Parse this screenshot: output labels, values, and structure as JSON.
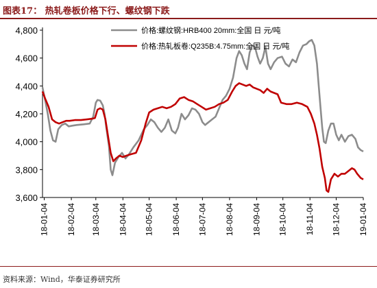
{
  "figure": {
    "title": "图表17：  热轧卷板价格下行、螺纹钢下跌",
    "source": "资料来源：Wind，华泰证券研究所"
  },
  "colors": {
    "rebar": "#8c8c8c",
    "hot_rolled": "#c00000",
    "title": "#8b1a1a",
    "axis": "#000000",
    "text": "#000000"
  },
  "chart_data": {
    "type": "line",
    "title": "",
    "xlabel": "",
    "ylabel": "",
    "ylim": [
      3600,
      4800
    ],
    "yticks": [
      3600,
      3800,
      4000,
      4200,
      4400,
      4600,
      4800
    ],
    "ytick_labels": [
      "3,600",
      "3,800",
      "4,000",
      "4,200",
      "4,400",
      "4,600",
      "4,800"
    ],
    "xlim": [
      "2018-01-02",
      "2019-01-04"
    ],
    "xticks": [
      "2018-01-04",
      "2018-02-04",
      "2018-03-04",
      "2018-04-04",
      "2018-05-04",
      "2018-06-04",
      "2018-07-04",
      "2018-08-04",
      "2018-09-04",
      "2018-10-04",
      "2018-11-04",
      "2018-12-04",
      "2019-01-04"
    ],
    "xtick_labels": [
      "18-01-04",
      "18-02-04",
      "18-03-04",
      "18-04-04",
      "18-05-04",
      "18-06-04",
      "18-07-04",
      "18-08-04",
      "18-09-04",
      "18-10-04",
      "18-11-04",
      "18-12-04",
      "19-01-04"
    ],
    "grid": false,
    "legend": "top-right",
    "series": [
      {
        "name": "价格:螺纹钢:HRB400 20mm:全国 日 元/吨",
        "color": "#8c8c8c",
        "points": [
          [
            "2018-01-02",
            4390
          ],
          [
            "2018-01-05",
            4300
          ],
          [
            "2018-01-08",
            4200
          ],
          [
            "2018-01-11",
            4080
          ],
          [
            "2018-01-14",
            4010
          ],
          [
            "2018-01-17",
            4000
          ],
          [
            "2018-01-20",
            4090
          ],
          [
            "2018-01-24",
            4120
          ],
          [
            "2018-01-28",
            4130
          ],
          [
            "2018-02-01",
            4110
          ],
          [
            "2018-02-05",
            4115
          ],
          [
            "2018-02-10",
            4120
          ],
          [
            "2018-02-18",
            4125
          ],
          [
            "2018-02-25",
            4130
          ],
          [
            "2018-03-01",
            4180
          ],
          [
            "2018-03-04",
            4280
          ],
          [
            "2018-03-06",
            4300
          ],
          [
            "2018-03-09",
            4295
          ],
          [
            "2018-03-12",
            4260
          ],
          [
            "2018-03-14",
            4200
          ],
          [
            "2018-03-16",
            4100
          ],
          [
            "2018-03-19",
            3970
          ],
          [
            "2018-03-21",
            3800
          ],
          [
            "2018-03-23",
            3760
          ],
          [
            "2018-03-26",
            3850
          ],
          [
            "2018-03-30",
            3890
          ],
          [
            "2018-04-03",
            3920
          ],
          [
            "2018-04-07",
            3880
          ],
          [
            "2018-04-11",
            3910
          ],
          [
            "2018-04-16",
            3960
          ],
          [
            "2018-04-22",
            4010
          ],
          [
            "2018-04-28",
            4090
          ],
          [
            "2018-05-02",
            4120
          ],
          [
            "2018-05-06",
            4160
          ],
          [
            "2018-05-10",
            4140
          ],
          [
            "2018-05-14",
            4100
          ],
          [
            "2018-05-18",
            4070
          ],
          [
            "2018-05-22",
            4100
          ],
          [
            "2018-05-26",
            4160
          ],
          [
            "2018-05-30",
            4080
          ],
          [
            "2018-06-03",
            4060
          ],
          [
            "2018-06-06",
            4100
          ],
          [
            "2018-06-10",
            4200
          ],
          [
            "2018-06-14",
            4160
          ],
          [
            "2018-06-18",
            4190
          ],
          [
            "2018-06-22",
            4240
          ],
          [
            "2018-06-26",
            4230
          ],
          [
            "2018-06-30",
            4200
          ],
          [
            "2018-07-04",
            4140
          ],
          [
            "2018-07-07",
            4120
          ],
          [
            "2018-07-11",
            4140
          ],
          [
            "2018-07-15",
            4160
          ],
          [
            "2018-07-19",
            4180
          ],
          [
            "2018-07-23",
            4240
          ],
          [
            "2018-07-27",
            4300
          ],
          [
            "2018-07-31",
            4330
          ],
          [
            "2018-08-04",
            4380
          ],
          [
            "2018-08-08",
            4460
          ],
          [
            "2018-08-12",
            4600
          ],
          [
            "2018-08-15",
            4650
          ],
          [
            "2018-08-18",
            4620
          ],
          [
            "2018-08-21",
            4560
          ],
          [
            "2018-08-24",
            4520
          ],
          [
            "2018-08-27",
            4640
          ],
          [
            "2018-08-30",
            4690
          ],
          [
            "2018-09-02",
            4680
          ],
          [
            "2018-09-05",
            4610
          ],
          [
            "2018-09-08",
            4560
          ],
          [
            "2018-09-11",
            4600
          ],
          [
            "2018-09-14",
            4680
          ],
          [
            "2018-09-17",
            4560
          ],
          [
            "2018-09-20",
            4520
          ],
          [
            "2018-09-24",
            4570
          ],
          [
            "2018-09-28",
            4600
          ],
          [
            "2018-10-03",
            4610
          ],
          [
            "2018-10-07",
            4560
          ],
          [
            "2018-10-11",
            4540
          ],
          [
            "2018-10-15",
            4590
          ],
          [
            "2018-10-19",
            4570
          ],
          [
            "2018-10-23",
            4640
          ],
          [
            "2018-10-27",
            4690
          ],
          [
            "2018-10-31",
            4700
          ],
          [
            "2018-11-03",
            4720
          ],
          [
            "2018-11-06",
            4730
          ],
          [
            "2018-11-09",
            4690
          ],
          [
            "2018-11-12",
            4560
          ],
          [
            "2018-11-14",
            4400
          ],
          [
            "2018-11-16",
            4250
          ],
          [
            "2018-11-18",
            4100
          ],
          [
            "2018-11-20",
            4000
          ],
          [
            "2018-11-22",
            3990
          ],
          [
            "2018-11-25",
            4080
          ],
          [
            "2018-11-28",
            4130
          ],
          [
            "2018-12-01",
            4130
          ],
          [
            "2018-12-04",
            4050
          ],
          [
            "2018-12-07",
            4010
          ],
          [
            "2018-12-10",
            4050
          ],
          [
            "2018-12-14",
            4000
          ],
          [
            "2018-12-18",
            4040
          ],
          [
            "2018-12-22",
            4050
          ],
          [
            "2018-12-26",
            4020
          ],
          [
            "2018-12-29",
            3960
          ],
          [
            "2019-01-01",
            3940
          ],
          [
            "2019-01-04",
            3930
          ]
        ]
      },
      {
        "name": "价格:热轧板卷:Q235B:4.75mm:全国 日 元/吨",
        "color": "#c00000",
        "points": [
          [
            "2018-01-02",
            4360
          ],
          [
            "2018-01-05",
            4310
          ],
          [
            "2018-01-09",
            4250
          ],
          [
            "2018-01-13",
            4160
          ],
          [
            "2018-01-17",
            4140
          ],
          [
            "2018-01-21",
            4130
          ],
          [
            "2018-01-25",
            4140
          ],
          [
            "2018-01-29",
            4150
          ],
          [
            "2018-02-02",
            4150
          ],
          [
            "2018-02-08",
            4155
          ],
          [
            "2018-02-15",
            4155
          ],
          [
            "2018-02-22",
            4160
          ],
          [
            "2018-02-28",
            4165
          ],
          [
            "2018-03-03",
            4170
          ],
          [
            "2018-03-06",
            4230
          ],
          [
            "2018-03-09",
            4240
          ],
          [
            "2018-03-12",
            4230
          ],
          [
            "2018-03-15",
            4160
          ],
          [
            "2018-03-18",
            4040
          ],
          [
            "2018-03-21",
            3920
          ],
          [
            "2018-03-24",
            3860
          ],
          [
            "2018-03-27",
            3880
          ],
          [
            "2018-03-31",
            3900
          ],
          [
            "2018-04-04",
            3890
          ],
          [
            "2018-04-08",
            3900
          ],
          [
            "2018-04-13",
            3910
          ],
          [
            "2018-04-19",
            3920
          ],
          [
            "2018-04-25",
            4010
          ],
          [
            "2018-04-30",
            4130
          ],
          [
            "2018-05-04",
            4210
          ],
          [
            "2018-05-09",
            4230
          ],
          [
            "2018-05-14",
            4240
          ],
          [
            "2018-05-19",
            4250
          ],
          [
            "2018-05-24",
            4240
          ],
          [
            "2018-05-29",
            4250
          ],
          [
            "2018-06-03",
            4270
          ],
          [
            "2018-06-08",
            4310
          ],
          [
            "2018-06-13",
            4320
          ],
          [
            "2018-06-18",
            4300
          ],
          [
            "2018-06-23",
            4290
          ],
          [
            "2018-06-28",
            4270
          ],
          [
            "2018-07-03",
            4250
          ],
          [
            "2018-07-08",
            4230
          ],
          [
            "2018-07-13",
            4240
          ],
          [
            "2018-07-18",
            4250
          ],
          [
            "2018-07-23",
            4270
          ],
          [
            "2018-07-28",
            4280
          ],
          [
            "2018-08-02",
            4300
          ],
          [
            "2018-08-07",
            4360
          ],
          [
            "2018-08-11",
            4400
          ],
          [
            "2018-08-15",
            4420
          ],
          [
            "2018-08-19",
            4410
          ],
          [
            "2018-08-23",
            4400
          ],
          [
            "2018-08-27",
            4410
          ],
          [
            "2018-08-31",
            4390
          ],
          [
            "2018-09-04",
            4380
          ],
          [
            "2018-09-08",
            4370
          ],
          [
            "2018-09-12",
            4350
          ],
          [
            "2018-09-16",
            4380
          ],
          [
            "2018-09-20",
            4360
          ],
          [
            "2018-09-24",
            4350
          ],
          [
            "2018-09-28",
            4340
          ],
          [
            "2018-10-02",
            4280
          ],
          [
            "2018-10-08",
            4270
          ],
          [
            "2018-10-14",
            4270
          ],
          [
            "2018-10-20",
            4280
          ],
          [
            "2018-10-26",
            4270
          ],
          [
            "2018-11-01",
            4250
          ],
          [
            "2018-11-05",
            4200
          ],
          [
            "2018-11-09",
            4130
          ],
          [
            "2018-11-12",
            4050
          ],
          [
            "2018-11-15",
            3950
          ],
          [
            "2018-11-18",
            3820
          ],
          [
            "2018-11-21",
            3740
          ],
          [
            "2018-11-23",
            3650
          ],
          [
            "2018-11-25",
            3640
          ],
          [
            "2018-11-28",
            3730
          ],
          [
            "2018-12-02",
            3770
          ],
          [
            "2018-12-06",
            3750
          ],
          [
            "2018-12-10",
            3770
          ],
          [
            "2018-12-14",
            3770
          ],
          [
            "2018-12-18",
            3790
          ],
          [
            "2018-12-22",
            3810
          ],
          [
            "2018-12-25",
            3800
          ],
          [
            "2018-12-28",
            3770
          ],
          [
            "2019-01-01",
            3740
          ],
          [
            "2019-01-04",
            3730
          ]
        ]
      }
    ]
  }
}
